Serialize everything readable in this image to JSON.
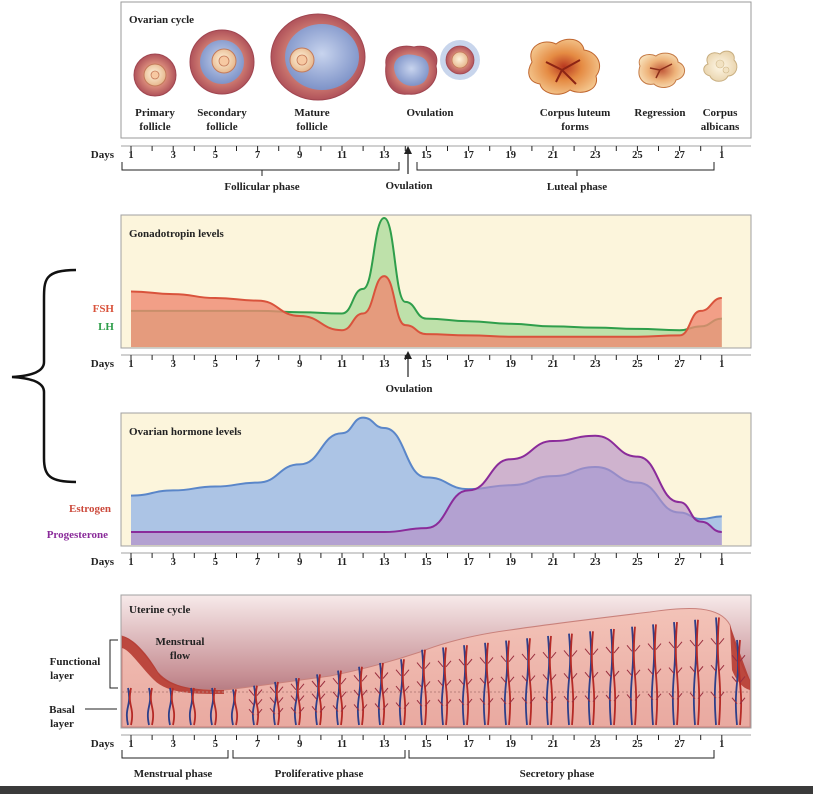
{
  "ovarian_cycle": {
    "title": "Ovarian cycle",
    "stages": [
      {
        "line1": "Primary",
        "line2": "follicle"
      },
      {
        "line1": "Secondary",
        "line2": "follicle"
      },
      {
        "line1": "Mature",
        "line2": "follicle"
      },
      {
        "line1": "Ovulation",
        "line2": ""
      },
      {
        "line1": "Corpus luteum",
        "line2": "forms"
      },
      {
        "line1": "Regression",
        "line2": ""
      },
      {
        "line1": "Corpus",
        "line2": "albicans"
      }
    ],
    "phases": {
      "follicular": "Follicular phase",
      "ovulation": "Ovulation",
      "luteal": "Luteal phase"
    }
  },
  "days_label": "Days",
  "day_ticks": [
    "1",
    "3",
    "5",
    "7",
    "9",
    "11",
    "13",
    "15",
    "17",
    "19",
    "21",
    "23",
    "25",
    "27",
    "1"
  ],
  "gonadotropin": {
    "title": "Gonadotropin levels",
    "fsh_label": "FSH",
    "lh_label": "LH",
    "ovulation_label": "Ovulation",
    "fsh_color": "#d9533c",
    "lh_color": "#2f9e4b"
  },
  "ovarian_hormone": {
    "title": "Ovarian hormone levels",
    "estrogen_label": "Estrogen",
    "progesterone_label": "Progesterone",
    "estrogen_color": "#cc4a3c",
    "progesterone_color": "#8a2b9a"
  },
  "uterine_cycle": {
    "title": "Uterine cycle",
    "menstrual_flow_line1": "Menstrual",
    "menstrual_flow_line2": "flow",
    "functional_line1": "Functional",
    "functional_line2": "layer",
    "basal_line1": "Basal",
    "basal_line2": "layer",
    "phases": {
      "menstrual": "Menstrual phase",
      "proliferative": "Proliferative phase",
      "secretory": "Secretory phase"
    }
  },
  "chart_data": [
    {
      "type": "line",
      "title": "Gonadotropin levels",
      "xlabel": "Days",
      "x": [
        1,
        3,
        5,
        7,
        9,
        11,
        12,
        13,
        14,
        15,
        17,
        19,
        21,
        23,
        25,
        27,
        28,
        29
      ],
      "series": [
        {
          "name": "FSH",
          "values": [
            0.43,
            0.41,
            0.38,
            0.36,
            0.24,
            0.13,
            0.26,
            0.55,
            0.17,
            0.1,
            0.09,
            0.08,
            0.08,
            0.08,
            0.08,
            0.09,
            0.28,
            0.38
          ]
        },
        {
          "name": "LH",
          "values": [
            0.28,
            0.28,
            0.28,
            0.28,
            0.27,
            0.26,
            0.45,
            1.0,
            0.35,
            0.22,
            0.2,
            0.18,
            0.16,
            0.15,
            0.14,
            0.13,
            0.16,
            0.22
          ]
        }
      ],
      "ylim": [
        0,
        1
      ]
    },
    {
      "type": "area",
      "title": "Ovarian hormone levels",
      "xlabel": "Days",
      "x": [
        1,
        3,
        5,
        7,
        9,
        11,
        12,
        13,
        15,
        17,
        19,
        21,
        23,
        25,
        27,
        28,
        29
      ],
      "series": [
        {
          "name": "Estrogen",
          "values": [
            0.38,
            0.42,
            0.45,
            0.48,
            0.62,
            0.86,
            0.98,
            0.9,
            0.52,
            0.43,
            0.46,
            0.53,
            0.6,
            0.48,
            0.25,
            0.2,
            0.22
          ]
        },
        {
          "name": "Progesterone",
          "values": [
            0.1,
            0.1,
            0.1,
            0.1,
            0.1,
            0.1,
            0.1,
            0.1,
            0.13,
            0.42,
            0.66,
            0.8,
            0.84,
            0.68,
            0.33,
            0.18,
            0.1
          ]
        }
      ],
      "ylim": [
        0,
        1
      ]
    }
  ]
}
